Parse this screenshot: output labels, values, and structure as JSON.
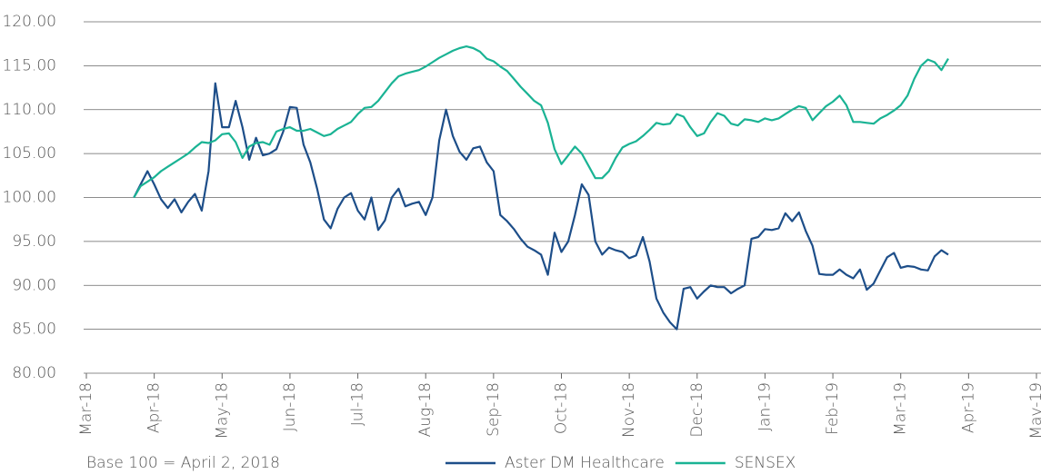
{
  "chart_data": {
    "type": "line",
    "note": "Base 100 = April 2, 2018",
    "xlim": [
      0,
      14
    ],
    "xticks": [
      {
        "value": 0,
        "label": "Mar-18"
      },
      {
        "value": 1,
        "label": "Apr-18"
      },
      {
        "value": 2,
        "label": "May-18"
      },
      {
        "value": 3,
        "label": "Jun-18"
      },
      {
        "value": 4,
        "label": "Jul-18"
      },
      {
        "value": 5,
        "label": "Aug-18"
      },
      {
        "value": 6,
        "label": "Sep-18"
      },
      {
        "value": 7,
        "label": "Oct-18"
      },
      {
        "value": 8,
        "label": "Nov-18"
      },
      {
        "value": 9,
        "label": "Dec-18"
      },
      {
        "value": 10,
        "label": "Jan-19"
      },
      {
        "value": 11,
        "label": "Feb-19"
      },
      {
        "value": 12,
        "label": "Mar-19"
      },
      {
        "value": 13,
        "label": "Apr-19"
      },
      {
        "value": 14,
        "label": "May-19"
      }
    ],
    "ylim": [
      80,
      120
    ],
    "yticks": [
      {
        "value": 80,
        "label": "80.00"
      },
      {
        "value": 85,
        "label": "85.00"
      },
      {
        "value": 90,
        "label": "90.00"
      },
      {
        "value": 95,
        "label": "95.00"
      },
      {
        "value": 100,
        "label": "100.00"
      },
      {
        "value": 105,
        "label": "105.00"
      },
      {
        "value": 110,
        "label": "110.00"
      },
      {
        "value": 115,
        "label": "115.00"
      },
      {
        "value": 120,
        "label": "120.00"
      }
    ],
    "grid": true,
    "legend": "bottom",
    "x": [
      0.7,
      0.8,
      0.9,
      1.0,
      1.1,
      1.2,
      1.3,
      1.4,
      1.5,
      1.6,
      1.7,
      1.8,
      1.9,
      2.0,
      2.1,
      2.2,
      2.3,
      2.4,
      2.5,
      2.6,
      2.7,
      2.8,
      2.9,
      3.0,
      3.1,
      3.2,
      3.3,
      3.4,
      3.5,
      3.6,
      3.7,
      3.8,
      3.9,
      4.0,
      4.1,
      4.2,
      4.3,
      4.4,
      4.5,
      4.6,
      4.7,
      4.8,
      4.9,
      5.0,
      5.1,
      5.2,
      5.3,
      5.4,
      5.5,
      5.6,
      5.7,
      5.8,
      5.9,
      6.0,
      6.1,
      6.2,
      6.3,
      6.4,
      6.5,
      6.6,
      6.7,
      6.8,
      6.9,
      7.0,
      7.1,
      7.2,
      7.3,
      7.4,
      7.5,
      7.6,
      7.7,
      7.8,
      7.9,
      8.0,
      8.1,
      8.2,
      8.3,
      8.4,
      8.5,
      8.6,
      8.7,
      8.8,
      8.9,
      9.0,
      9.1,
      9.2,
      9.3,
      9.4,
      9.5,
      9.6,
      9.7,
      9.8,
      9.9,
      10.0,
      10.1,
      10.2,
      10.3,
      10.4,
      10.5,
      10.6,
      10.7,
      10.8,
      10.9,
      11.0,
      11.1,
      11.2,
      11.3,
      11.4,
      11.5,
      11.6,
      11.7,
      11.8,
      11.9,
      12.0,
      12.1,
      12.2,
      12.3,
      12.4,
      12.5,
      12.6,
      12.7
    ],
    "series": [
      {
        "name": "Aster DM Healthcare",
        "color": "#1d4e89",
        "values": [
          100,
          101.5,
          103,
          101.5,
          99.8,
          98.8,
          99.8,
          98.3,
          99.5,
          100.4,
          98.5,
          103,
          113,
          108,
          108,
          111,
          108,
          104.3,
          106.8,
          104.8,
          105,
          105.5,
          107.5,
          110.3,
          110.2,
          106,
          104,
          101,
          97.5,
          96.5,
          98.7,
          100,
          100.5,
          98.5,
          97.5,
          100,
          96.3,
          97.4,
          100,
          101,
          99,
          99.3,
          99.5,
          98,
          100,
          106.5,
          110,
          107,
          105.2,
          104.3,
          105.6,
          105.8,
          104,
          103,
          98,
          97.3,
          96.4,
          95.3,
          94.4,
          94,
          93.5,
          91.2,
          96,
          93.8,
          95,
          98,
          101.5,
          100.3,
          95,
          93.5,
          94.3,
          94,
          93.8,
          93.1,
          93.4,
          95.5,
          92.7,
          88.5,
          86.9,
          85.8,
          85,
          89.6,
          89.8,
          88.5,
          89.3,
          90,
          89.8,
          89.8,
          89.1,
          89.6,
          90,
          95.3,
          95.5,
          96.4,
          96.3,
          96.5,
          98.2,
          97.3,
          98.3,
          96.2,
          94.5,
          91.3,
          91.2,
          91.2,
          91.8,
          91.2,
          90.8,
          91.8,
          89.5,
          90.2,
          91.7,
          93.2,
          93.7,
          92,
          92.2,
          92.1,
          91.8,
          91.7,
          93.3,
          94,
          93.5
        ]
      },
      {
        "name": "SENSEX",
        "color": "#1ab394",
        "values": [
          100,
          101.3,
          101.8,
          102.3,
          103,
          103.5,
          104,
          104.5,
          105,
          105.7,
          106.3,
          106.2,
          106.5,
          107.2,
          107.3,
          106.3,
          104.5,
          105.8,
          106.2,
          106.3,
          106,
          107.5,
          107.8,
          108,
          107.6,
          107.6,
          107.8,
          107.4,
          107,
          107.2,
          107.8,
          108.2,
          108.6,
          109.5,
          110.2,
          110.3,
          111,
          112,
          113,
          113.8,
          114.1,
          114.3,
          114.5,
          114.9,
          115.4,
          115.9,
          116.3,
          116.7,
          117,
          117.2,
          117,
          116.6,
          115.8,
          115.5,
          114.9,
          114.4,
          113.5,
          112.6,
          111.8,
          111,
          110.5,
          108.5,
          105.5,
          103.8,
          104.8,
          105.8,
          105,
          103.6,
          102.2,
          102.2,
          103,
          104.5,
          105.7,
          106.1,
          106.4,
          107,
          107.7,
          108.5,
          108.3,
          108.4,
          109.5,
          109.2,
          108,
          107,
          107.3,
          108.6,
          109.6,
          109.3,
          108.4,
          108.2,
          108.9,
          108.8,
          108.6,
          109,
          108.8,
          109,
          109.5,
          110,
          110.4,
          110.2,
          108.8,
          109.6,
          110.4,
          110.9,
          111.6,
          110.5,
          108.6,
          108.6,
          108.5,
          108.4,
          109,
          109.4,
          109.9,
          110.5,
          111.6,
          113.5,
          115,
          115.7,
          115.4,
          114.5,
          115.8
        ]
      }
    ]
  }
}
